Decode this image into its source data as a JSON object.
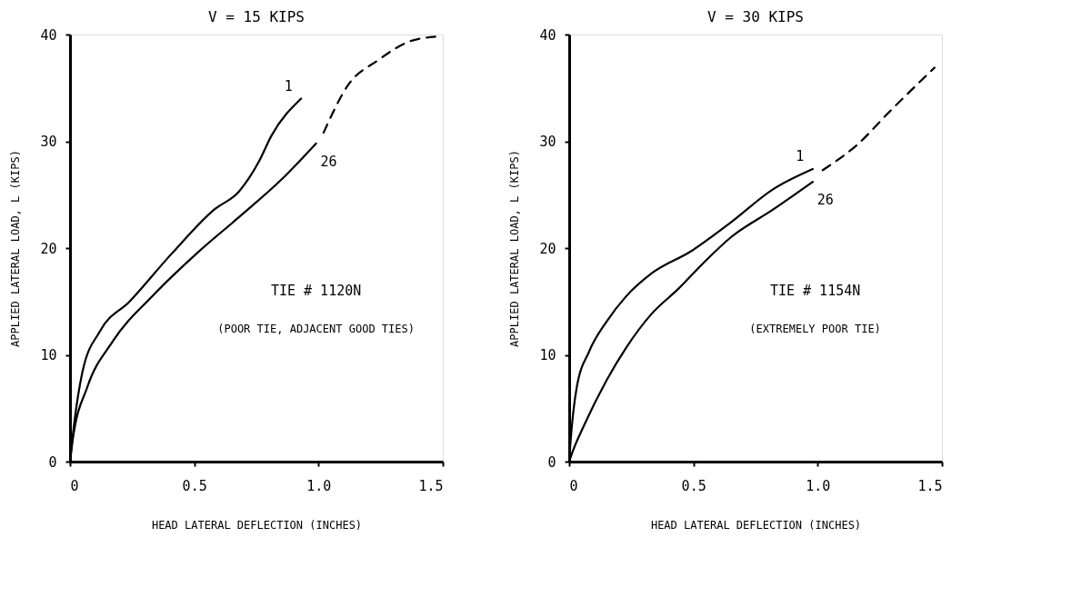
{
  "chart_data": [
    {
      "type": "line",
      "title": "V = 15 KIPS",
      "xlabel": "HEAD LATERAL DEFLECTION (INCHES)",
      "ylabel": "APPLIED LATERAL LOAD, L (KIPS)",
      "annotations": [
        "TIE # 1120N",
        "(POOR TIE, ADJACENT GOOD TIES)"
      ],
      "xlim": [
        0,
        1.5
      ],
      "xticks": [
        0,
        0.5,
        {
          "value": 1,
          "label": "1.0"
        },
        1.5
      ],
      "ylim": [
        0,
        40
      ],
      "yticks": [
        0,
        10,
        20,
        30,
        40
      ],
      "grid": false,
      "marker": "none",
      "series": [
        {
          "name": "1",
          "color": "#000000",
          "line_style": "solid",
          "x": [
            0,
            0.017,
            0.05,
            0.12,
            0.24,
            0.41,
            0.58,
            0.68,
            0.76,
            0.81,
            0.93
          ],
          "values": [
            0,
            3.6,
            8.4,
            12.2,
            15,
            19.5,
            23.6,
            25.3,
            28.1,
            30.5,
            34
          ]
        },
        {
          "name": "26",
          "color": "#000000",
          "line_style": "solid",
          "x": [
            0,
            0.01,
            0.07,
            0.17,
            0.34,
            0.51,
            0.68,
            0.85,
            0.99
          ],
          "values": [
            0,
            1.9,
            7,
            11.2,
            15.7,
            19.5,
            22.9,
            26.4,
            29.8
          ]
        },
        {
          "color": "#000000",
          "line_style": "dashed",
          "x": [
            1.02,
            1.12,
            1.24,
            1.36,
            1.47
          ],
          "values": [
            30.8,
            35.3,
            37.6,
            39.3,
            39.8
          ]
        }
      ]
    },
    {
      "type": "line",
      "title": "V = 30 KIPS",
      "xlabel": "HEAD LATERAL DEFLECTION (INCHES)",
      "ylabel": "APPLIED LATERAL LOAD, L (KIPS)",
      "annotations": [
        "TIE # 1154N",
        "(EXTREMELY POOR TIE)"
      ],
      "xlim": [
        0,
        1.5
      ],
      "xticks": [
        0,
        0.5,
        {
          "value": 1,
          "label": "1.0"
        },
        1.5
      ],
      "ylim": [
        0,
        40
      ],
      "yticks": [
        0,
        10,
        20,
        30,
        40
      ],
      "grid": false,
      "marker": "none",
      "series": [
        {
          "name": "1",
          "color": "#000000",
          "line_style": "solid",
          "x": [
            0,
            0.005,
            0.03,
            0.08,
            0.15,
            0.23,
            0.33,
            0.49,
            0.65,
            0.82,
            0.98
          ],
          "values": [
            0,
            1.7,
            6.9,
            10.3,
            13.1,
            15.5,
            17.6,
            19.7,
            22.4,
            25.5,
            27.4
          ]
        },
        {
          "name": "26",
          "color": "#000000",
          "line_style": "solid",
          "x": [
            0,
            0.01,
            0.06,
            0.15,
            0.23,
            0.33,
            0.44,
            0.54,
            0.65,
            0.82,
            0.98
          ],
          "values": [
            0,
            0.7,
            3.4,
            7.6,
            10.7,
            13.8,
            16.2,
            18.6,
            21,
            23.6,
            26.2
          ]
        },
        {
          "color": "#000000",
          "line_style": "dashed",
          "x": [
            1.02,
            1.16,
            1.29,
            1.47
          ],
          "values": [
            27.3,
            29.7,
            32.8,
            36.9
          ]
        }
      ]
    }
  ]
}
